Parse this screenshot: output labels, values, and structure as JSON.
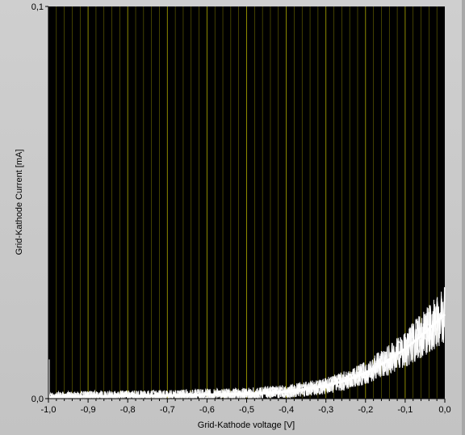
{
  "chart_data": {
    "type": "line",
    "title": "",
    "xlabel": "Grid-Kathode  voltage [V]",
    "ylabel": "Grid-Kathode Current [mA]",
    "xlim": [
      -1.0,
      0.0
    ],
    "ylim": [
      0.0,
      0.1
    ],
    "x_ticks": [
      "-1,0",
      "-0,9",
      "-0,8",
      "-0,7",
      "-0,6",
      "-0,5",
      "-0,4",
      "-0,3",
      "-0,2",
      "-0,1",
      "0,0"
    ],
    "y_ticks": [
      "0,0",
      "0,1"
    ],
    "grid": "vertical",
    "colors": {
      "plot_background": "#000000",
      "grid": "#b8b400",
      "trace": "#ffffff",
      "frame": "#c9c9c9"
    },
    "series": [
      {
        "color": "#ffffff",
        "x": [
          -1.0,
          -0.95,
          -0.9,
          -0.85,
          -0.8,
          -0.75,
          -0.7,
          -0.65,
          -0.6,
          -0.55,
          -0.5,
          -0.45,
          -0.4,
          -0.35,
          -0.3,
          -0.25,
          -0.2,
          -0.15,
          -0.1,
          -0.05,
          0.0
        ],
        "y": [
          0.0003,
          0.0005,
          0.0006,
          0.0006,
          0.0007,
          0.0007,
          0.0008,
          0.0009,
          0.001,
          0.0011,
          0.0012,
          0.0015,
          0.0018,
          0.0024,
          0.0033,
          0.0046,
          0.0066,
          0.0093,
          0.0127,
          0.0168,
          0.0215
        ]
      }
    ]
  }
}
